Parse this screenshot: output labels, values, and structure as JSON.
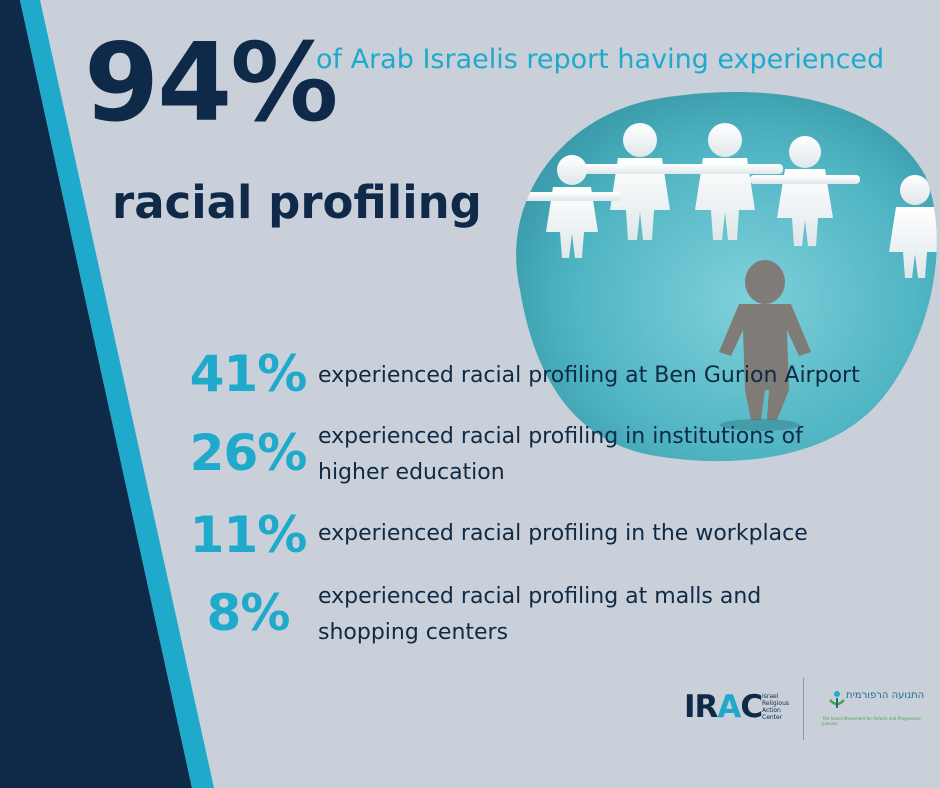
{
  "headline": {
    "percent": "94%",
    "subtitle": "of Arab Israelis report having experienced",
    "main": "racial profiling"
  },
  "stats": [
    {
      "percent": "41%",
      "text": "experienced racial profiling at Ben Gurion Airport"
    },
    {
      "percent": "26%",
      "text": "experienced racial profiling in institutions of higher education"
    },
    {
      "percent": "11%",
      "text": "experienced racial profiling in the workplace"
    },
    {
      "percent": "8%",
      "text": "experienced racial profiling at malls and shopping centers"
    }
  ],
  "logos": {
    "irac": {
      "ir": "IR",
      "a": "A",
      "c": "C",
      "small": "Israel Religious Action Center"
    },
    "reform": {
      "hebrew": "התנועה הרפורמית",
      "tagline": "The Israeli Movement for Reform and Progressive Judaism"
    }
  },
  "colors": {
    "background": "#c9d0da",
    "navy": "#0f2a48",
    "accent": "#1faacb",
    "photo_teal": "#4fb4c2"
  },
  "image": {
    "name": "paper-people-chain-photo"
  }
}
